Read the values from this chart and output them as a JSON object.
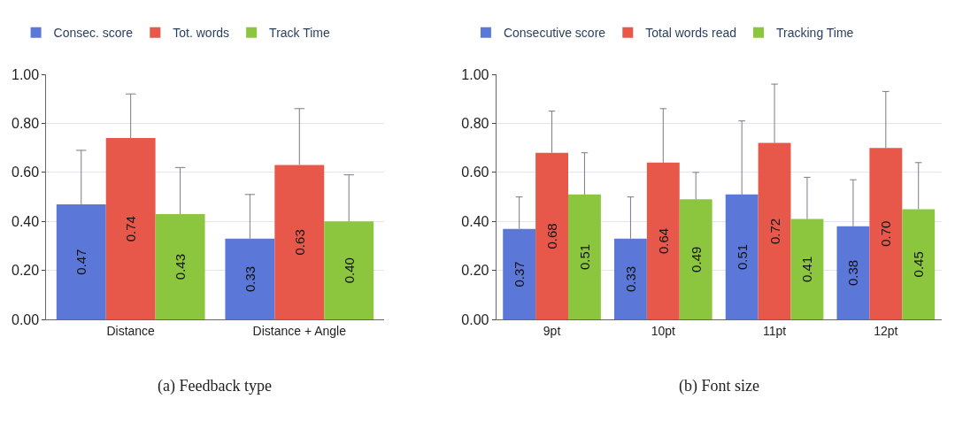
{
  "chart_data": [
    {
      "type": "bar",
      "categories": [
        "Distance",
        "Distance + Angle"
      ],
      "ylim": [
        0,
        1
      ],
      "yticks": [
        {
          "value": 0,
          "label": "0.00"
        },
        {
          "value": 0.2,
          "label": "0.20"
        },
        {
          "value": 0.4,
          "label": "0.40"
        },
        {
          "value": 0.6,
          "label": "0.60"
        },
        {
          "value": 0.8,
          "label": "0.80"
        },
        {
          "value": 1,
          "label": "1.00"
        }
      ],
      "grid": "y",
      "legend": "top left",
      "annotations": [
        "(a) Feedback type"
      ],
      "series": [
        {
          "name": "Consec. score",
          "color": "#5b78d8",
          "values": [
            0.47,
            0.33
          ],
          "value_labels": [
            "0.47",
            "0.33"
          ],
          "errors": [
            [
              0.47,
              0.69
            ],
            [
              0.33,
              0.51
            ]
          ]
        },
        {
          "name": "Tot. words",
          "color": "#e8584a",
          "values": [
            0.74,
            0.63
          ],
          "value_labels": [
            "0.74",
            "0.63"
          ],
          "errors": [
            [
              0.74,
              0.92
            ],
            [
              0.63,
              0.86
            ]
          ]
        },
        {
          "name": "Track Time",
          "color": "#8cc63e",
          "values": [
            0.43,
            0.4
          ],
          "value_labels": [
            "0.43",
            "0.40"
          ],
          "errors": [
            [
              0.43,
              0.62
            ],
            [
              0.4,
              0.59
            ]
          ]
        }
      ]
    },
    {
      "type": "bar",
      "categories": [
        "9pt",
        "10pt",
        "11pt",
        "12pt"
      ],
      "ylim": [
        0,
        1
      ],
      "yticks": [
        {
          "value": 0,
          "label": "0.00"
        },
        {
          "value": 0.2,
          "label": "0.20"
        },
        {
          "value": 0.4,
          "label": "0.40"
        },
        {
          "value": 0.6,
          "label": "0.60"
        },
        {
          "value": 0.8,
          "label": "0.80"
        },
        {
          "value": 1,
          "label": "1.00"
        }
      ],
      "grid": "y",
      "legend": "top left",
      "annotations": [
        "(b) Font size"
      ],
      "series": [
        {
          "name": "Consecutive score",
          "color": "#5b78d8",
          "values": [
            0.37,
            0.33,
            0.51,
            0.38
          ],
          "value_labels": [
            "0.37",
            "0.33",
            "0.51",
            "0.38"
          ],
          "errors": [
            [
              0.37,
              0.5
            ],
            [
              0.33,
              0.5
            ],
            [
              0.51,
              0.81
            ],
            [
              0.38,
              0.57
            ]
          ]
        },
        {
          "name": "Total words read",
          "color": "#e8584a",
          "values": [
            0.68,
            0.64,
            0.72,
            0.7
          ],
          "value_labels": [
            "0.68",
            "0.64",
            "0.72",
            "0.70"
          ],
          "errors": [
            [
              0.68,
              0.85
            ],
            [
              0.64,
              0.86
            ],
            [
              0.72,
              0.96
            ],
            [
              0.7,
              0.93
            ]
          ]
        },
        {
          "name": "Tracking Time",
          "color": "#8cc63e",
          "values": [
            0.51,
            0.49,
            0.41,
            0.45
          ],
          "value_labels": [
            "0.51",
            "0.49",
            "0.41",
            "0.45"
          ],
          "errors": [
            [
              0.51,
              0.68
            ],
            [
              0.49,
              0.6
            ],
            [
              0.41,
              0.58
            ],
            [
              0.45,
              0.64
            ]
          ]
        }
      ]
    }
  ]
}
